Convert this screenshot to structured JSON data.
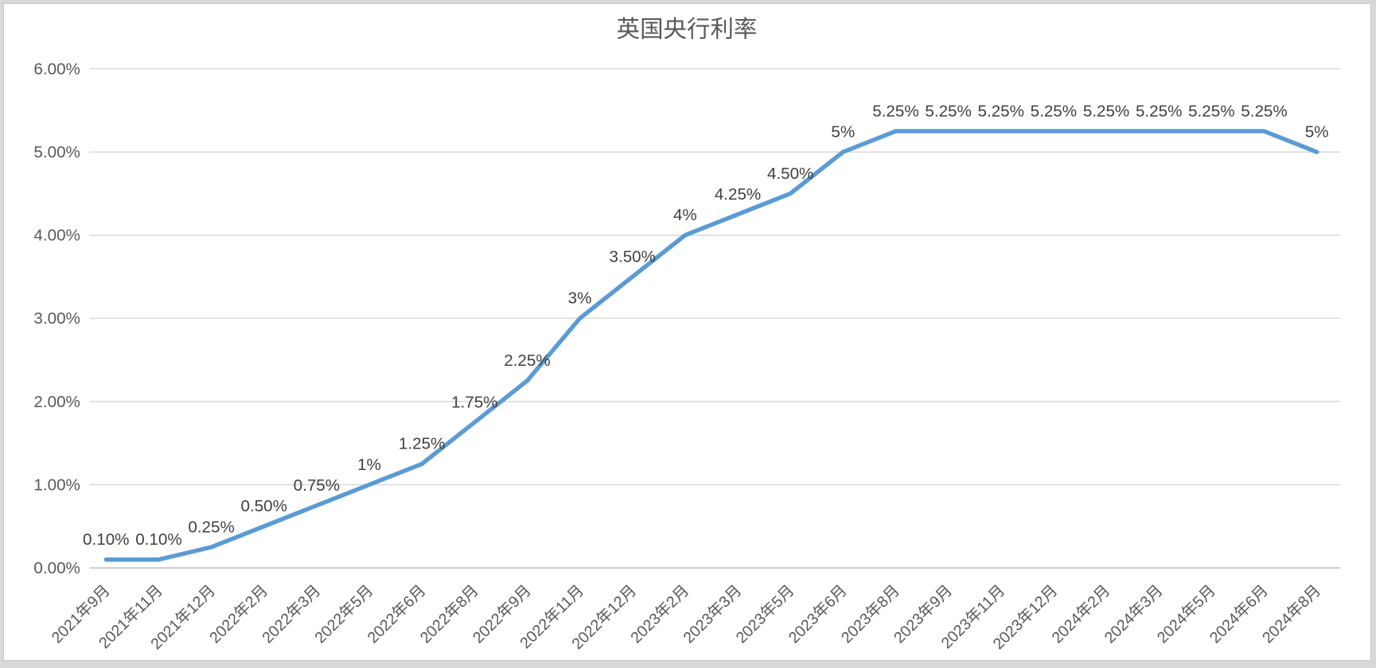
{
  "chart_data": {
    "type": "line",
    "title": "英国央行利率",
    "categories": [
      "2021年9月",
      "2021年11月",
      "2021年12月",
      "2022年2月",
      "2022年3月",
      "2022年5月",
      "2022年6月",
      "2022年8月",
      "2022年9月",
      "2022年11月",
      "2022年12月",
      "2023年2月",
      "2023年3月",
      "2023年5月",
      "2023年6月",
      "2023年8月",
      "2023年9月",
      "2023年11月",
      "2023年12月",
      "2024年2月",
      "2024年3月",
      "2024年5月",
      "2024年6月",
      "2024年8月"
    ],
    "values": [
      0.1,
      0.1,
      0.25,
      0.5,
      0.75,
      1,
      1.25,
      1.75,
      2.25,
      3,
      3.5,
      4,
      4.25,
      4.5,
      5,
      5.25,
      5.25,
      5.25,
      5.25,
      5.25,
      5.25,
      5.25,
      5.25,
      5
    ],
    "data_labels": [
      "0.10%",
      "0.10%",
      "0.25%",
      "0.50%",
      "0.75%",
      "1%",
      "1.25%",
      "1.75%",
      "2.25%",
      "3%",
      "3.50%",
      "4%",
      "4.25%",
      "4.50%",
      "5%",
      "5.25%",
      "5.25%",
      "5.25%",
      "5.25%",
      "5.25%",
      "5.25%",
      "5.25%",
      "5.25%",
      "5%"
    ],
    "y_ticks": [
      "6.00%",
      "5.00%",
      "4.00%",
      "3.00%",
      "2.00%",
      "1.00%",
      "0.00%"
    ],
    "ylim": [
      0,
      6
    ],
    "xlabel": "",
    "ylabel": "",
    "grid": "horizontal",
    "legend": "none"
  },
  "colors": {
    "series_line": "#5B9BD5",
    "gridline": "#D9D9D9",
    "axis_line": "#BFBFBF",
    "tick_label": "#595959",
    "data_label": "#404040",
    "title": "#595959",
    "panel_bg": "#FFFFFF",
    "page_bg": "#D9D9D9"
  }
}
